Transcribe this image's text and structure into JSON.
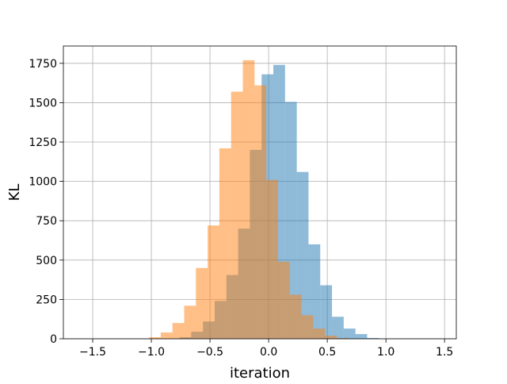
{
  "chart_data": {
    "type": "bar",
    "subtype": "overlaid-histogram",
    "title": "",
    "xlabel": "iteration",
    "ylabel": "KL",
    "xlim": [
      -1.75,
      1.6
    ],
    "ylim": [
      0,
      1860
    ],
    "xticks": [
      -1.5,
      -1.0,
      -0.5,
      0.0,
      0.5,
      1.0,
      1.5
    ],
    "xtick_labels": [
      "−1.5",
      "−1.0",
      "−0.5",
      "0.0",
      "0.5",
      "1.0",
      "1.5"
    ],
    "yticks": [
      0,
      250,
      500,
      750,
      1000,
      1250,
      1500,
      1750
    ],
    "ytick_labels": [
      "0",
      "250",
      "500",
      "750",
      "1000",
      "1250",
      "1500",
      "1750"
    ],
    "grid": true,
    "legend": "none",
    "series": [
      {
        "color": "#1f77b4",
        "alpha": 0.5,
        "bin_width": 0.1,
        "bin_edges": [
          -0.86,
          -0.76,
          -0.66,
          -0.56,
          -0.46,
          -0.36,
          -0.26,
          -0.16,
          -0.06,
          0.04,
          0.14,
          0.24,
          0.34,
          0.44,
          0.54,
          0.64,
          0.74,
          0.84,
          0.94
        ],
        "values": [
          2,
          10,
          45,
          110,
          240,
          405,
          700,
          1200,
          1680,
          1740,
          1505,
          1060,
          600,
          340,
          140,
          65,
          30,
          5
        ]
      },
      {
        "color": "#ff7f0e",
        "alpha": 0.5,
        "bin_width": 0.1,
        "bin_edges": [
          -1.02,
          -0.92,
          -0.82,
          -0.72,
          -0.62,
          -0.52,
          -0.42,
          -0.32,
          -0.22,
          -0.12,
          -0.02,
          0.08,
          0.18,
          0.28,
          0.38,
          0.48,
          0.58,
          0.68
        ],
        "values": [
          10,
          40,
          100,
          210,
          450,
          720,
          1210,
          1570,
          1770,
          1610,
          1010,
          490,
          280,
          150,
          65,
          20,
          5
        ]
      }
    ]
  }
}
